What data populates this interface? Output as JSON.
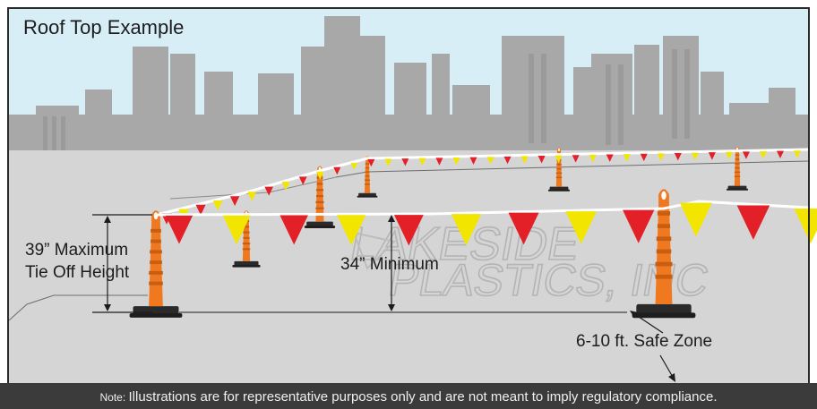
{
  "title": "Roof Top Example",
  "labels": {
    "max_line1": "39”  Maximum",
    "max_line2": "Tie Off Height",
    "minimum": "34” Minimum",
    "safe_zone": "6-10 ft. Safe Zone"
  },
  "watermark": [
    "LAKESIDE",
    "PLASTICS, INC"
  ],
  "footer": {
    "prefix": "Note: ",
    "text": "Illustrations are for representative purposes only and are not meant to imply regulatory compliance."
  },
  "colors": {
    "sky": "#d7eef6",
    "skyline": "#a8a8a8",
    "roof": "#d5d5d5",
    "cone": "#f0781e",
    "flag_red": "#e32027",
    "flag_yellow": "#f2e600",
    "footer_bg": "#3b3b3b"
  }
}
